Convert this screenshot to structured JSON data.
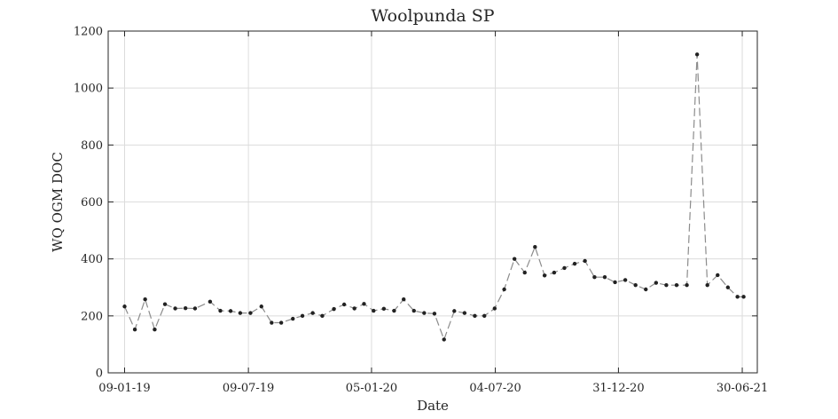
{
  "chart_data": {
    "type": "line",
    "title": "Woolpunda SP",
    "xlabel": "Date",
    "ylabel": "WQ OGM DOC",
    "x_tick_labels": [
      "09-01-19",
      "09-07-19",
      "05-01-20",
      "04-07-20",
      "31-12-20",
      "30-06-21"
    ],
    "x_ticks": [
      "2019-01-09",
      "2019-07-09",
      "2020-01-05",
      "2020-07-04",
      "2020-12-31",
      "2021-06-30"
    ],
    "xlim": [
      "2018-12-16",
      "2021-07-22"
    ],
    "ylim": [
      0,
      1200
    ],
    "y_ticks": [
      0,
      200,
      400,
      600,
      800,
      1000,
      1200
    ],
    "grid": true,
    "series": [
      {
        "color": "#8c8c8c",
        "marker_color": "#222222",
        "x": [
          "2019-01-09",
          "2019-01-24",
          "2019-02-08",
          "2019-02-22",
          "2019-03-09",
          "2019-03-24",
          "2019-04-08",
          "2019-04-22",
          "2019-05-14",
          "2019-05-29",
          "2019-06-13",
          "2019-06-27",
          "2019-07-12",
          "2019-07-28",
          "2019-08-12",
          "2019-08-26",
          "2019-09-12",
          "2019-09-26",
          "2019-10-11",
          "2019-10-25",
          "2019-11-11",
          "2019-11-26",
          "2019-12-11",
          "2019-12-25",
          "2020-01-08",
          "2020-01-23",
          "2020-02-07",
          "2020-02-21",
          "2020-03-07",
          "2020-03-22",
          "2020-04-06",
          "2020-04-20",
          "2020-05-05",
          "2020-05-20",
          "2020-06-04",
          "2020-06-18",
          "2020-07-03",
          "2020-07-17",
          "2020-08-01",
          "2020-08-16",
          "2020-08-31",
          "2020-09-14",
          "2020-09-28",
          "2020-10-13",
          "2020-10-28",
          "2020-11-12",
          "2020-11-26",
          "2020-12-11",
          "2020-12-26",
          "2021-01-10",
          "2021-01-25",
          "2021-02-09",
          "2021-02-24",
          "2021-03-11",
          "2021-03-26",
          "2021-04-10",
          "2021-04-25",
          "2021-05-10",
          "2021-05-25",
          "2021-06-09",
          "2021-06-23",
          "2021-07-02"
        ],
        "y": [
          233,
          152,
          258,
          152,
          241,
          226,
          227,
          226,
          250,
          218,
          217,
          210,
          210,
          233,
          176,
          176,
          190,
          200,
          210,
          200,
          224,
          240,
          226,
          242,
          218,
          225,
          218,
          258,
          218,
          210,
          208,
          117,
          217,
          210,
          200,
          200,
          226,
          293,
          400,
          352,
          442,
          342,
          352,
          368,
          383,
          393,
          336,
          336,
          318,
          326,
          308,
          293,
          316,
          308,
          308,
          308,
          1118,
          308,
          343,
          300,
          267,
          267
        ]
      }
    ]
  }
}
